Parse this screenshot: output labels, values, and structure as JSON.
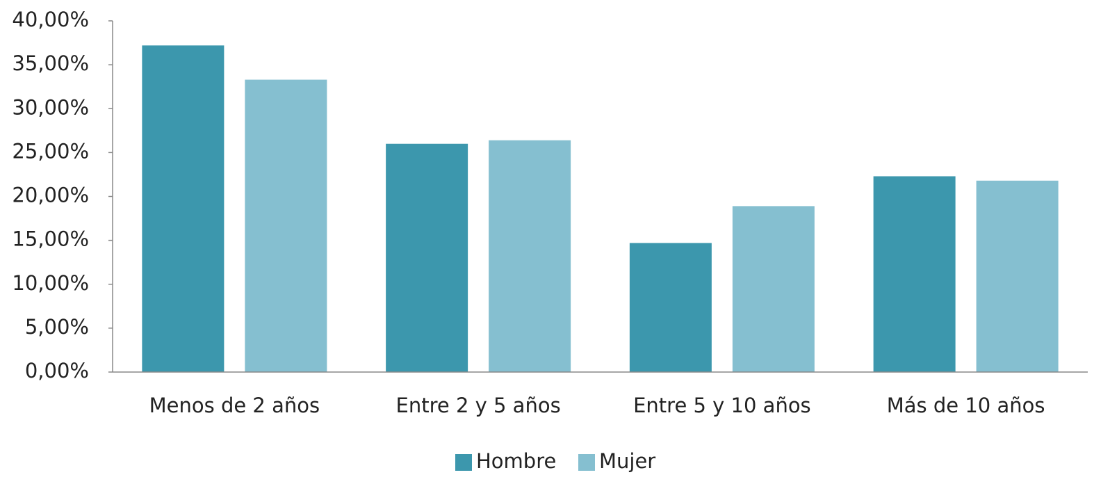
{
  "chart_data": {
    "type": "bar",
    "categories": [
      "Menos de 2 años",
      "Entre 2 y 5 años",
      "Entre 5 y 10 años",
      "Más de 10 años"
    ],
    "series": [
      {
        "name": "Hombre",
        "color": "#3c97ad",
        "values": [
          37.2,
          26.0,
          14.7,
          22.3
        ]
      },
      {
        "name": "Mujer",
        "color": "#85bfd0",
        "values": [
          33.3,
          26.4,
          18.9,
          21.8
        ]
      }
    ],
    "ylim": [
      0,
      40
    ],
    "yticks": [
      {
        "value": 0,
        "label": "0,00%"
      },
      {
        "value": 5,
        "label": "5,00%"
      },
      {
        "value": 10,
        "label": "10,00%"
      },
      {
        "value": 15,
        "label": "15,00%"
      },
      {
        "value": 20,
        "label": "20,00%"
      },
      {
        "value": 25,
        "label": "25,00%"
      },
      {
        "value": 30,
        "label": "30,00%"
      },
      {
        "value": 35,
        "label": "35,00%"
      },
      {
        "value": 40,
        "label": "40,00%"
      }
    ],
    "grid": false,
    "legend": "bottom"
  }
}
